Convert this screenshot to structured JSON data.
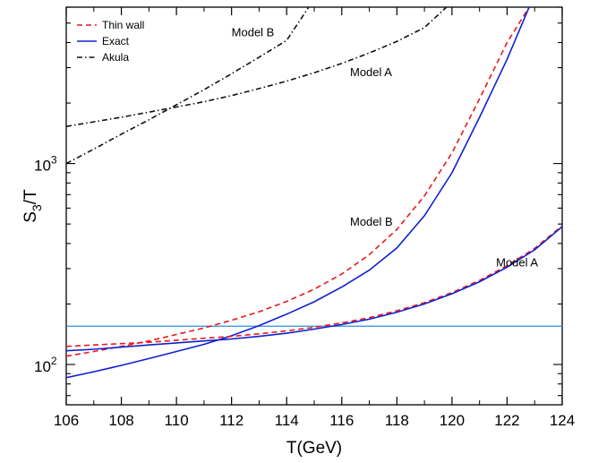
{
  "chart_data": {
    "type": "line",
    "title": "",
    "xlabel": "T(GeV)",
    "ylabel_main": "S",
    "ylabel_sub": "3",
    "ylabel_tail": "/T",
    "xlim": [
      106,
      124
    ],
    "ylim": [
      63,
      6000
    ],
    "yscale": "log",
    "grid": false,
    "legend_position": "top-left",
    "x_ticks": [
      "106",
      "108",
      "110",
      "112",
      "114",
      "116",
      "118",
      "120",
      "122",
      "124"
    ],
    "y_tick_labels": [
      {
        "base": "10",
        "exp": "2",
        "value": 100
      },
      {
        "base": "10",
        "exp": "3",
        "value": 1000
      }
    ],
    "legend": [
      {
        "label": "Thin wall",
        "style": "dashed",
        "color": "#e8191b"
      },
      {
        "label": "Exact",
        "style": "solid",
        "color": "#1020d0"
      },
      {
        "label": "Akula",
        "style": "dashdot",
        "color": "#111111"
      }
    ],
    "annotations": [
      {
        "text": "Model B",
        "x": 112.0,
        "y": 4300
      },
      {
        "text": "Model A",
        "x": 116.3,
        "y": 2720
      },
      {
        "text": "Model B",
        "x": 116.3,
        "y": 490
      },
      {
        "text": "Model A",
        "x": 121.6,
        "y": 308
      }
    ],
    "reference_line": {
      "y": 155,
      "color": "#2d8fd4"
    },
    "series": [
      {
        "style": "dashed",
        "color": "#e8191b",
        "points": [
          [
            106,
            110
          ],
          [
            107,
            116
          ],
          [
            108,
            123
          ],
          [
            109,
            131
          ],
          [
            110,
            141
          ],
          [
            111,
            152
          ],
          [
            112,
            166
          ],
          [
            113,
            183
          ],
          [
            114,
            206
          ],
          [
            115,
            237
          ],
          [
            116,
            282
          ],
          [
            117,
            352
          ],
          [
            118,
            470
          ],
          [
            119,
            690
          ],
          [
            120,
            1130
          ],
          [
            121,
            2100
          ],
          [
            122,
            4000
          ],
          [
            122.8,
            6000
          ]
        ]
      },
      {
        "style": "solid",
        "color": "#1020d0",
        "points": [
          [
            106,
            86
          ],
          [
            107,
            92
          ],
          [
            108,
            99
          ],
          [
            109,
            107
          ],
          [
            110,
            116
          ],
          [
            111,
            126
          ],
          [
            112,
            139
          ],
          [
            113,
            156
          ],
          [
            114,
            178
          ],
          [
            115,
            205
          ],
          [
            116,
            243
          ],
          [
            117,
            295
          ],
          [
            118,
            380
          ],
          [
            119,
            550
          ],
          [
            120,
            900
          ],
          [
            121,
            1700
          ],
          [
            122,
            3300
          ],
          [
            122.8,
            6000
          ]
        ]
      },
      {
        "style": "dashed",
        "color": "#e8191b",
        "points": [
          [
            106,
            123
          ],
          [
            107,
            125
          ],
          [
            108,
            127
          ],
          [
            109,
            129
          ],
          [
            110,
            132
          ],
          [
            111,
            135
          ],
          [
            112,
            138
          ],
          [
            113,
            142
          ],
          [
            114,
            147
          ],
          [
            115,
            153
          ],
          [
            116,
            161
          ],
          [
            117,
            171
          ],
          [
            118,
            185
          ],
          [
            119,
            203
          ],
          [
            120,
            228
          ],
          [
            121,
            262
          ],
          [
            122,
            310
          ],
          [
            123,
            378
          ],
          [
            124,
            490
          ]
        ]
      },
      {
        "style": "solid",
        "color": "#1020d0",
        "points": [
          [
            106,
            117
          ],
          [
            107,
            119
          ],
          [
            108,
            122
          ],
          [
            109,
            125
          ],
          [
            110,
            128
          ],
          [
            111,
            131
          ],
          [
            112,
            134
          ],
          [
            113,
            138
          ],
          [
            114,
            143
          ],
          [
            115,
            150
          ],
          [
            116,
            158
          ],
          [
            117,
            168
          ],
          [
            118,
            182
          ],
          [
            119,
            200
          ],
          [
            120,
            225
          ],
          [
            121,
            258
          ],
          [
            122,
            305
          ],
          [
            123,
            372
          ],
          [
            124,
            485
          ]
        ]
      },
      {
        "style": "dashdot",
        "color": "#111111",
        "points": [
          [
            106,
            1000
          ],
          [
            107,
            1180
          ],
          [
            108,
            1400
          ],
          [
            109,
            1650
          ],
          [
            110,
            1960
          ],
          [
            111,
            2330
          ],
          [
            112,
            2800
          ],
          [
            113,
            3380
          ],
          [
            114,
            4100
          ],
          [
            114.8,
            6000
          ]
        ]
      },
      {
        "style": "dashdot",
        "color": "#111111",
        "points": [
          [
            106,
            1530
          ],
          [
            108,
            1700
          ],
          [
            110,
            1910
          ],
          [
            111,
            2030
          ],
          [
            112,
            2180
          ],
          [
            113,
            2360
          ],
          [
            114,
            2570
          ],
          [
            115,
            2830
          ],
          [
            116,
            3150
          ],
          [
            117,
            3550
          ],
          [
            118,
            4050
          ],
          [
            119,
            4750
          ],
          [
            119.8,
            6000
          ]
        ]
      }
    ]
  }
}
